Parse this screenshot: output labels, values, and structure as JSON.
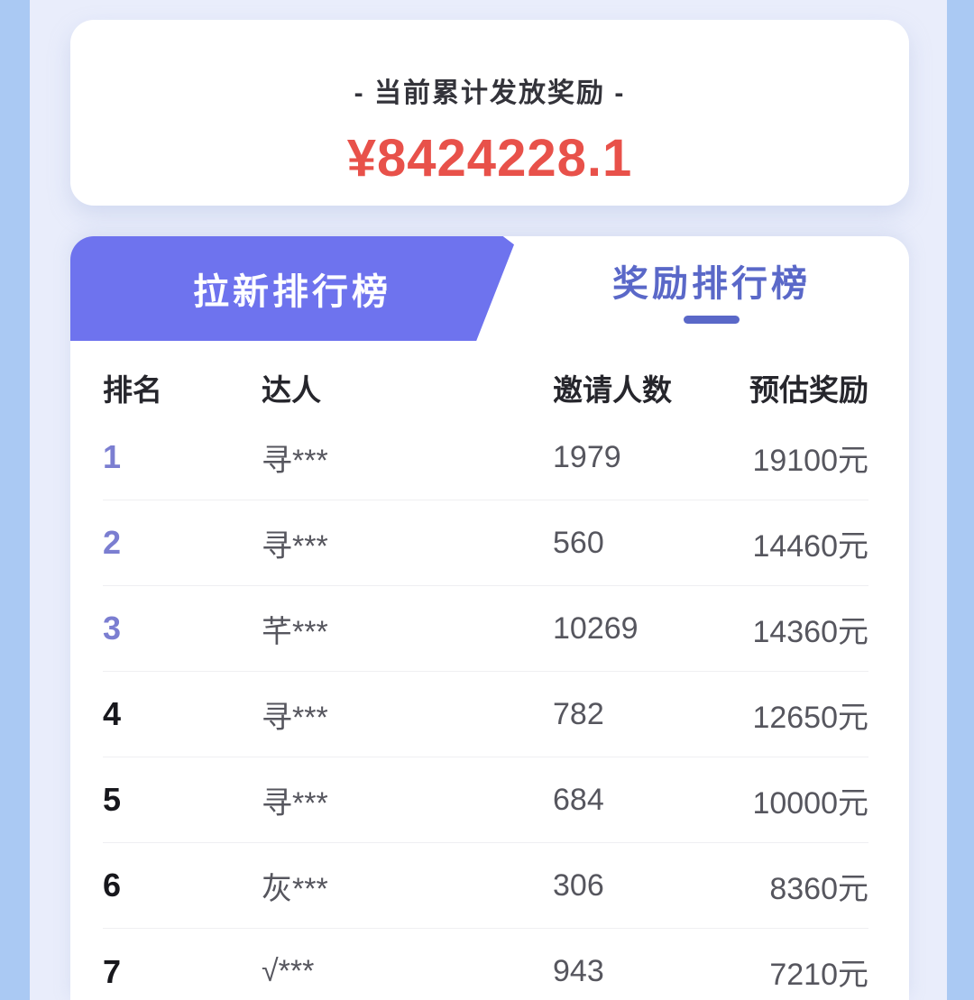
{
  "summary_card": {
    "title": "- 当前累计发放奖励 -",
    "amount": "¥8424228.1"
  },
  "tabs": [
    {
      "label": "拉新排行榜",
      "active": true
    },
    {
      "label": "奖励排行榜",
      "active": false
    }
  ],
  "table": {
    "headers": {
      "rank": "排名",
      "name": "达人",
      "invites": "邀请人数",
      "reward": "预估奖励"
    },
    "rows": [
      {
        "rank": "1",
        "name": "寻***",
        "invites": "1979",
        "reward": "19100元"
      },
      {
        "rank": "2",
        "name": "寻***",
        "invites": "560",
        "reward": "14460元"
      },
      {
        "rank": "3",
        "name": "芊***",
        "invites": "10269",
        "reward": "14360元"
      },
      {
        "rank": "4",
        "name": "寻***",
        "invites": "782",
        "reward": "12650元"
      },
      {
        "rank": "5",
        "name": "寻***",
        "invites": "684",
        "reward": "10000元"
      },
      {
        "rank": "6",
        "name": "灰***",
        "invites": "306",
        "reward": "8360元"
      },
      {
        "rank": "7",
        "name": "√***",
        "invites": "943",
        "reward": "7210元"
      }
    ]
  },
  "colors": {
    "accent_purple": "#6e73ee",
    "inactive_tab_purple": "#5a68c8",
    "amount_red": "#e8514a",
    "top3_rank_purple": "#7b7ed1",
    "page_background": "#e9edfb",
    "edge_strip_blue": "#aac9f3"
  }
}
